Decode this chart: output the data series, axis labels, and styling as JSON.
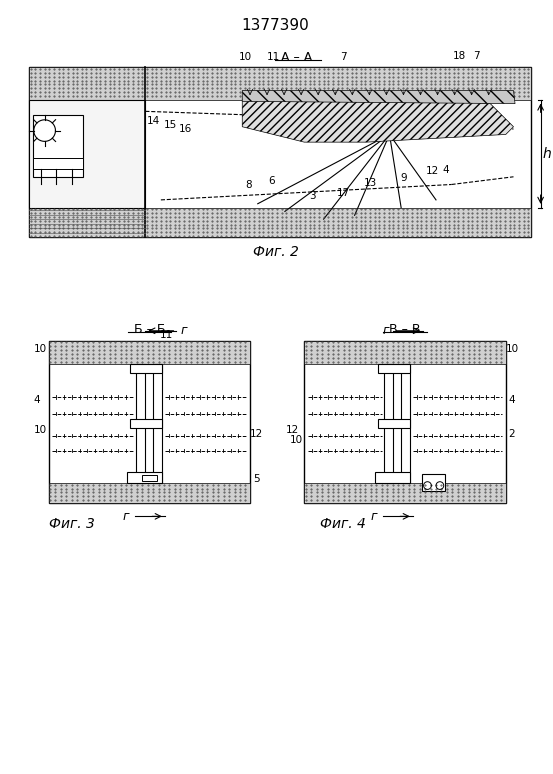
{
  "title": "1377390",
  "bg_color": "#ffffff",
  "fig2_caption": "Фиг. 2",
  "fig3_caption": "Фиг. 3",
  "fig4_caption": "Фиг. 4"
}
